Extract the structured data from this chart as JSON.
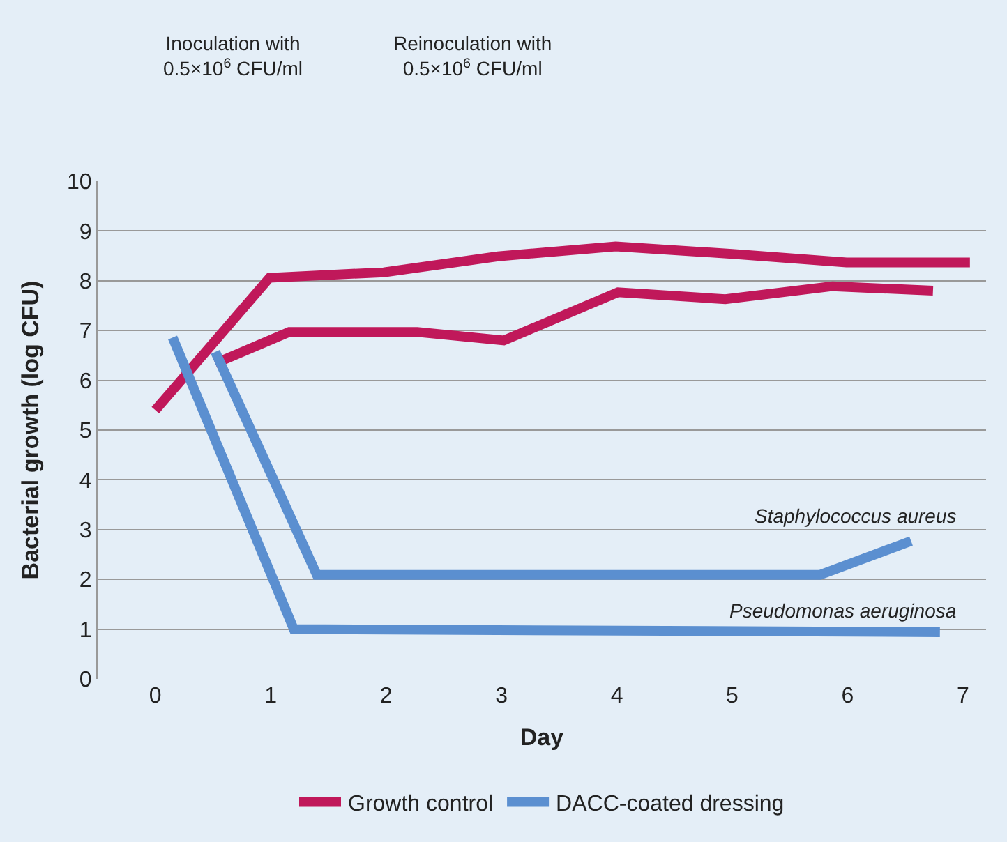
{
  "chart_data": {
    "type": "line",
    "xlabel": "Day",
    "ylabel": "Bacterial growth (log CFU)",
    "xlim": [
      -0.5,
      7.2
    ],
    "xticks": [
      0,
      1,
      2,
      3,
      4,
      5,
      6,
      7
    ],
    "ylim": [
      0,
      10
    ],
    "yticks": [
      0,
      1,
      2,
      3,
      4,
      5,
      6,
      7,
      8,
      9,
      10
    ],
    "grid": "y",
    "legend": "bottom",
    "marker": "none",
    "line_style": "solid",
    "series": [
      {
        "name": "Growth control",
        "color": "#c0185a",
        "x": [
          0,
          0.99,
          1.98,
          2.97,
          3.99,
          5,
          5.99,
          7.06
        ],
        "values": [
          5.4,
          8.06,
          8.17,
          8.49,
          8.69,
          8.54,
          8.37,
          8.37
        ]
      },
      {
        "color": "#c0185a",
        "x": [
          0.52,
          1.16,
          2.27,
          3.02,
          4.01,
          4.94,
          5.87,
          6.74
        ],
        "values": [
          6.34,
          6.97,
          6.97,
          6.8,
          7.77,
          7.63,
          7.89,
          7.8
        ]
      },
      {
        "name": "DACC-coated dressing",
        "color": "#5b8fd0",
        "x": [
          0.52,
          1.4,
          5.76,
          6.55
        ],
        "values": [
          6.57,
          2.09,
          2.09,
          2.77
        ]
      },
      {
        "color": "#5b8fd0",
        "x": [
          0.15,
          1.2,
          6.8
        ],
        "values": [
          6.86,
          1.0,
          0.94
        ]
      }
    ],
    "annotations": [
      "Inoculation with\n0.5×10$^{6}$ CFU/ml",
      "Reinoculation with\n0.5×10$^{6}$ CFU/ml",
      "Staphylococcus aureus",
      "Pseudomonas aeruginosa"
    ]
  }
}
